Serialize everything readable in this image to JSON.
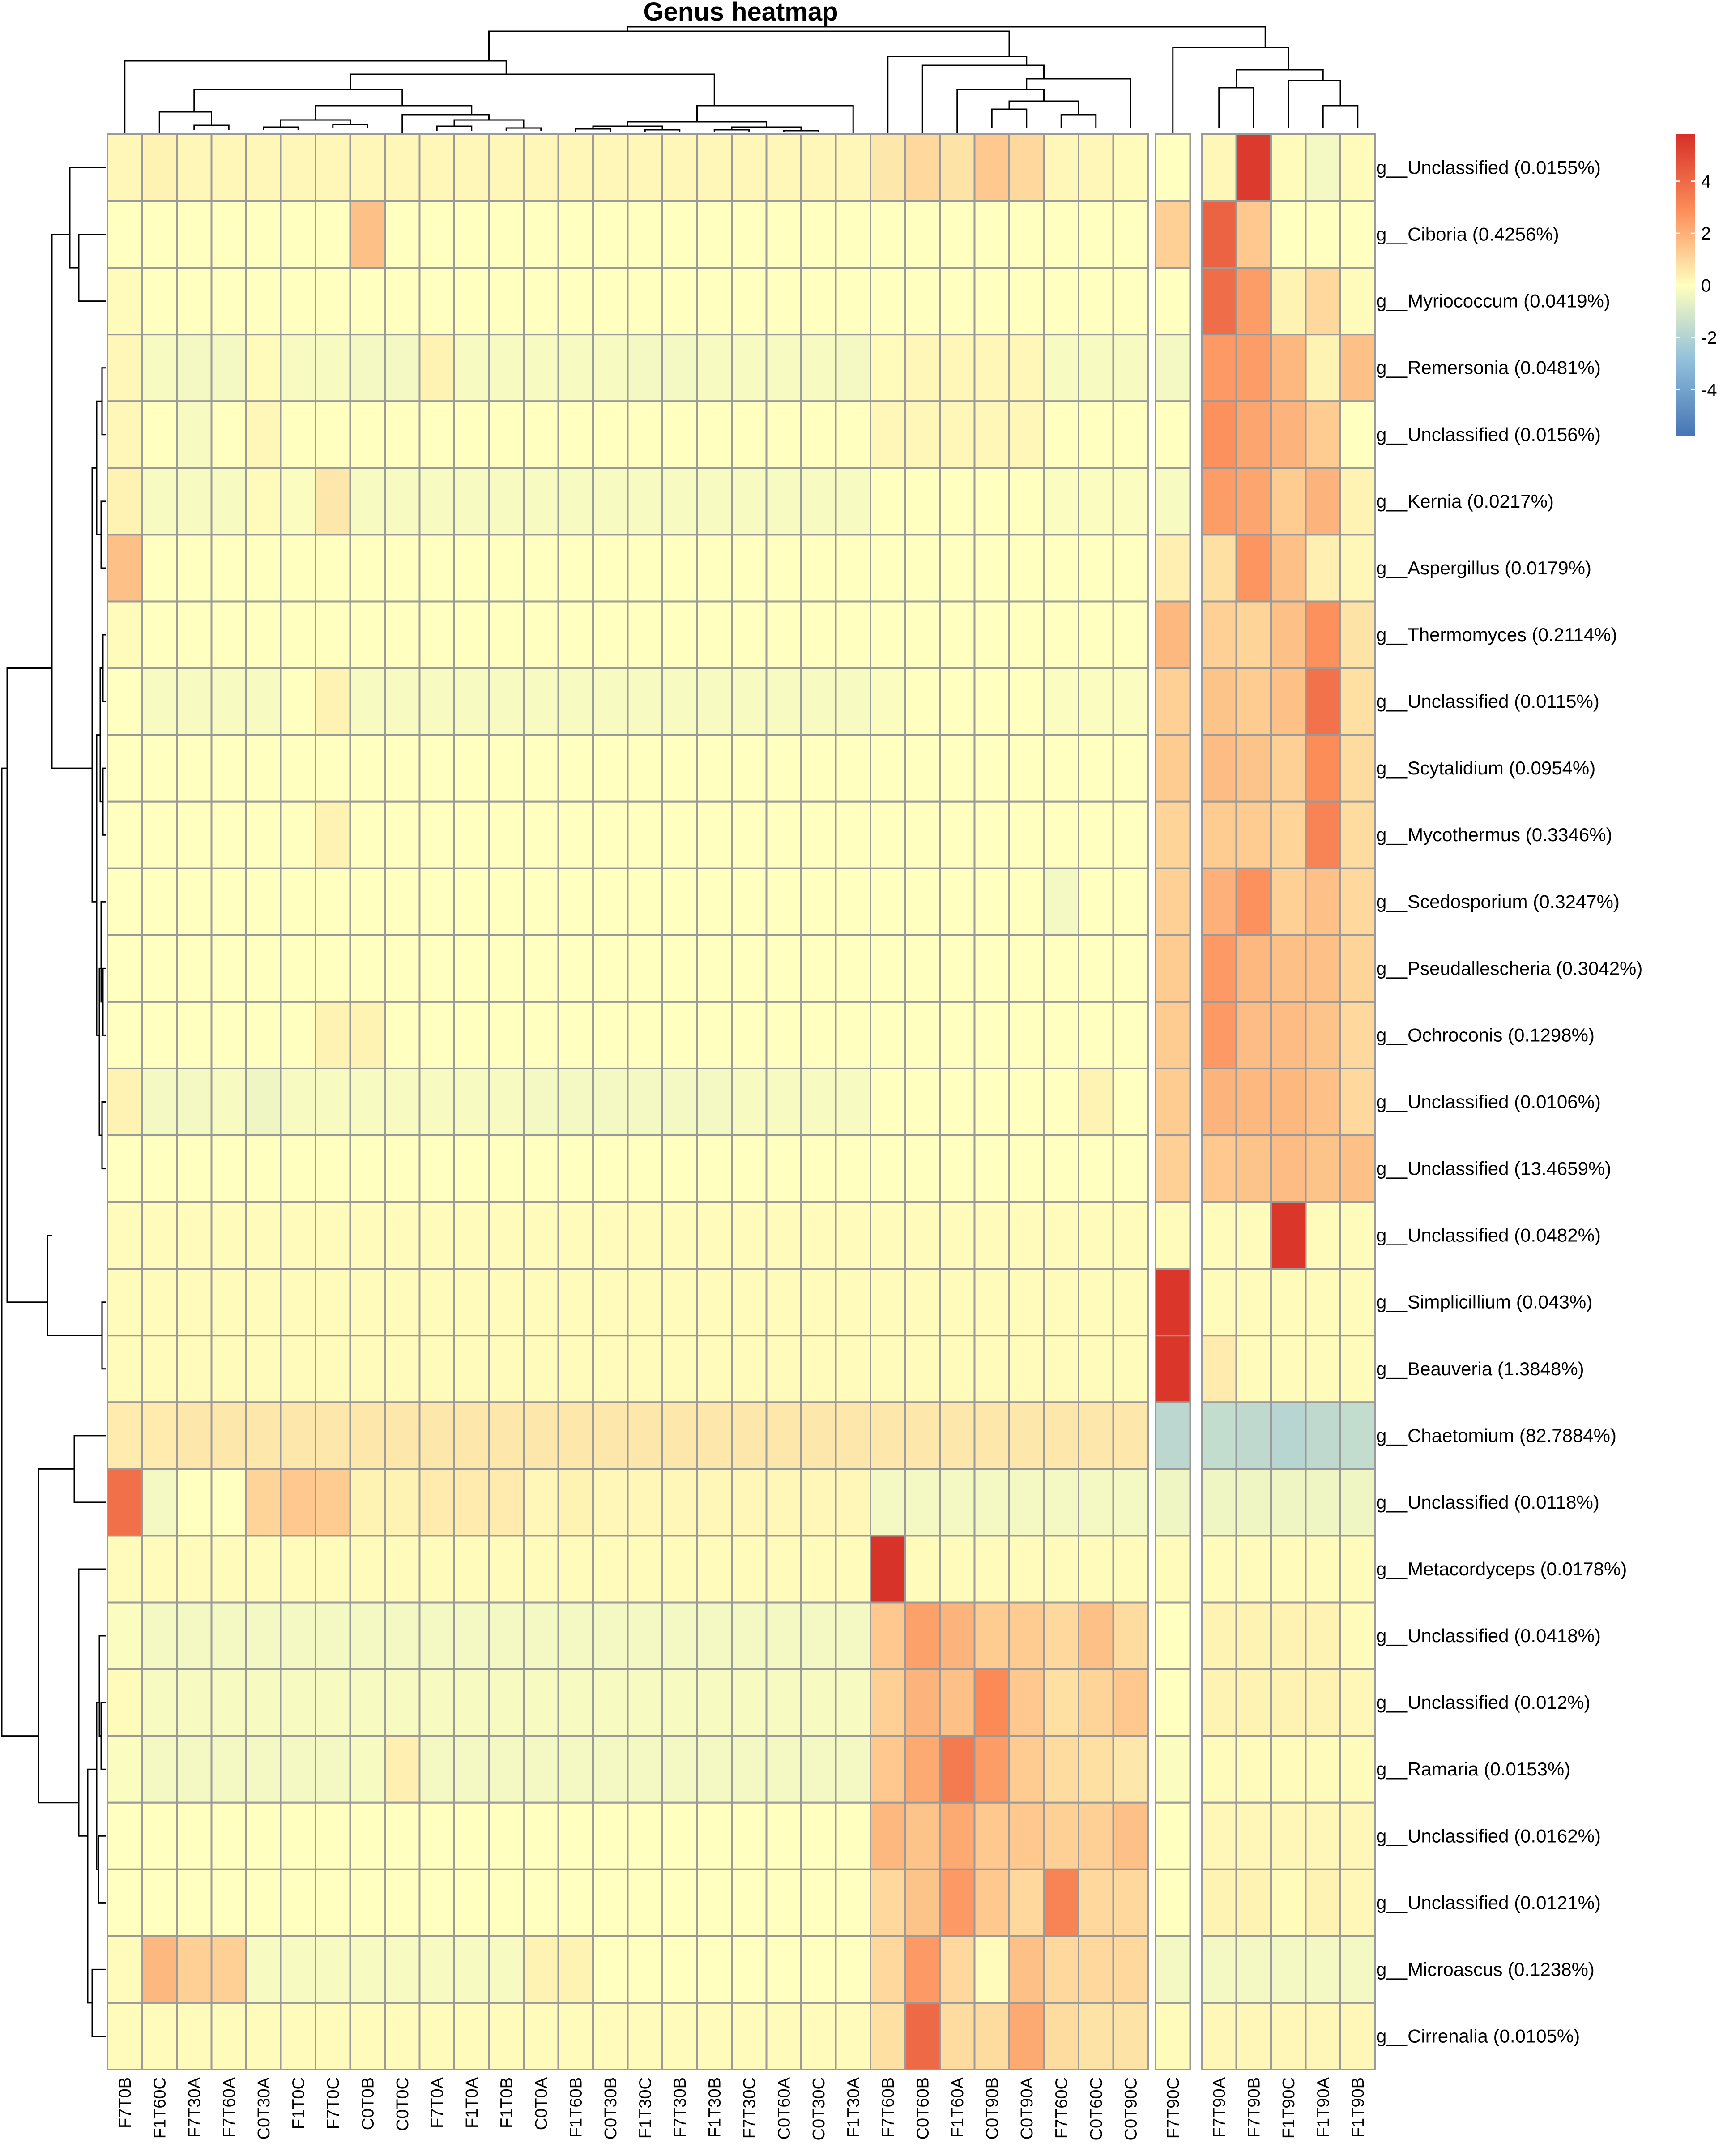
{
  "chart_data": {
    "type": "heatmap",
    "title": "Genus heatmap",
    "columns": [
      "F7T0B",
      "F1T60C",
      "F7T30A",
      "F7T60A",
      "C0T30A",
      "F1T0C",
      "F7T0C",
      "C0T0B",
      "C0T0C",
      "F7T0A",
      "F1T0A",
      "F1T0B",
      "C0T0A",
      "F1T60B",
      "C0T30B",
      "F1T30C",
      "F7T30B",
      "F1T30B",
      "F7T30C",
      "C0T60A",
      "C0T30C",
      "F1T30A",
      "F7T60B",
      "C0T60B",
      "F1T60A",
      "C0T90B",
      "C0T90A",
      "F7T60C",
      "C0T60C",
      "C0T90C",
      "F7T90C",
      "F7T90A",
      "F7T90B",
      "F1T90C",
      "F1T90A",
      "F1T90B"
    ],
    "rows": [
      "g__Unclassified (0.0155%)",
      "g__Ciboria (0.4256%)",
      "g__Myriococcum (0.0419%)",
      "g__Remersonia (0.0481%)",
      "g__Unclassified (0.0156%)",
      "g__Kernia (0.0217%)",
      "g__Aspergillus (0.0179%)",
      "g__Thermomyces (0.2114%)",
      "g__Unclassified (0.0115%)",
      "g__Scytalidium (0.0954%)",
      "g__Mycothermus (0.3346%)",
      "g__Scedosporium (0.3247%)",
      "g__Pseudallescheria (0.3042%)",
      "g__Ochroconis (0.1298%)",
      "g__Unclassified (0.0106%)",
      "g__Unclassified (13.4659%)",
      "g__Unclassified (0.0482%)",
      "g__Simplicillium (0.043%)",
      "g__Beauveria (1.3848%)",
      "g__Chaetomium (82.7884%)",
      "g__Unclassified (0.0118%)",
      "g__Metacordyceps (0.0178%)",
      "g__Unclassified (0.0418%)",
      "g__Unclassified (0.012%)",
      "g__Ramaria (0.0153%)",
      "g__Unclassified (0.0162%)",
      "g__Unclassified (0.0121%)",
      "g__Microascus (0.1238%)",
      "g__Cirrenalia (0.0105%)"
    ],
    "values": [
      [
        0.2,
        0.3,
        0.2,
        0.2,
        0.2,
        0.2,
        0.2,
        0.2,
        0.2,
        0.2,
        0.2,
        0.2,
        0.2,
        0.2,
        0.2,
        0.2,
        0.2,
        0.2,
        0.2,
        0.2,
        0.2,
        0.2,
        0.6,
        1.0,
        0.7,
        1.4,
        1.0,
        0.2,
        0.2,
        0.1,
        0.0,
        0.2,
        5.5,
        0.1,
        -0.3,
        0.1
      ],
      [
        0.0,
        0.0,
        0.0,
        0.0,
        0.0,
        0.0,
        0.0,
        1.6,
        0.0,
        0.0,
        0.0,
        0.0,
        0.0,
        0.0,
        0.0,
        0.0,
        0.0,
        0.0,
        0.0,
        0.0,
        0.0,
        0.0,
        0.0,
        0.0,
        0.0,
        0.0,
        0.0,
        0.0,
        0.0,
        0.0,
        1.2,
        4.2,
        1.4,
        0.0,
        0.0,
        0.0
      ],
      [
        0.1,
        0.0,
        0.0,
        0.0,
        0.0,
        0.0,
        0.0,
        0.0,
        0.0,
        0.0,
        0.0,
        0.0,
        0.0,
        0.0,
        0.0,
        0.0,
        0.0,
        0.0,
        0.0,
        0.0,
        0.0,
        0.0,
        0.0,
        0.0,
        0.0,
        0.0,
        0.0,
        0.0,
        0.0,
        0.0,
        0.0,
        3.9,
        2.5,
        0.3,
        1.0,
        0.1
      ],
      [
        0.2,
        -0.2,
        -0.3,
        -0.3,
        0.1,
        -0.2,
        -0.2,
        -0.3,
        -0.3,
        0.3,
        -0.2,
        -0.2,
        -0.2,
        -0.2,
        -0.2,
        -0.3,
        -0.3,
        -0.2,
        -0.2,
        -0.2,
        -0.2,
        -0.3,
        0.1,
        0.2,
        0.2,
        0.2,
        0.2,
        -0.2,
        -0.2,
        -0.2,
        -0.3,
        2.6,
        2.5,
        1.8,
        0.3,
        1.6
      ],
      [
        0.2,
        0.0,
        -0.2,
        0.0,
        0.2,
        0.0,
        0.0,
        0.0,
        0.0,
        0.0,
        0.0,
        0.0,
        0.0,
        0.0,
        0.0,
        0.0,
        0.0,
        0.0,
        0.0,
        0.0,
        0.0,
        0.0,
        0.2,
        0.2,
        0.2,
        0.2,
        0.2,
        0.0,
        0.0,
        0.0,
        0.0,
        2.8,
        2.3,
        1.9,
        1.3,
        0.0
      ],
      [
        0.3,
        -0.2,
        -0.2,
        -0.2,
        0.1,
        -0.1,
        0.6,
        -0.2,
        -0.2,
        -0.2,
        -0.2,
        -0.2,
        -0.2,
        -0.2,
        -0.2,
        -0.2,
        -0.2,
        -0.2,
        -0.2,
        -0.2,
        -0.2,
        -0.2,
        0.0,
        0.0,
        0.0,
        0.0,
        0.0,
        -0.1,
        -0.1,
        -0.1,
        -0.2,
        2.5,
        2.3,
        1.3,
        1.9,
        0.3
      ],
      [
        1.6,
        0.0,
        0.0,
        0.0,
        0.0,
        0.0,
        0.0,
        0.0,
        0.0,
        0.0,
        0.0,
        0.0,
        0.0,
        0.0,
        0.0,
        0.0,
        0.0,
        0.0,
        0.0,
        0.0,
        0.0,
        0.0,
        0.0,
        0.0,
        0.0,
        0.0,
        0.0,
        0.0,
        0.0,
        0.0,
        0.4,
        0.8,
        2.7,
        1.6,
        0.4,
        0.2
      ],
      [
        0.1,
        0.0,
        0.0,
        0.0,
        0.0,
        0.0,
        0.0,
        0.0,
        0.0,
        0.0,
        0.0,
        0.0,
        0.0,
        0.0,
        0.0,
        0.0,
        0.0,
        0.0,
        0.0,
        0.0,
        0.0,
        0.0,
        0.0,
        0.0,
        0.0,
        0.0,
        0.0,
        0.0,
        0.0,
        0.0,
        1.8,
        1.2,
        1.1,
        1.6,
        2.8,
        0.7
      ],
      [
        0.0,
        -0.2,
        -0.2,
        -0.2,
        -0.2,
        0.0,
        0.3,
        -0.2,
        -0.2,
        -0.2,
        -0.2,
        -0.2,
        -0.2,
        -0.2,
        -0.2,
        -0.2,
        -0.2,
        -0.2,
        -0.2,
        -0.2,
        -0.2,
        -0.2,
        -0.1,
        0.0,
        0.0,
        0.0,
        0.0,
        -0.1,
        -0.1,
        -0.1,
        1.2,
        1.5,
        1.3,
        1.6,
        3.7,
        0.8
      ],
      [
        0.0,
        0.0,
        0.0,
        0.0,
        0.0,
        0.0,
        0.0,
        0.0,
        0.0,
        0.0,
        0.0,
        0.0,
        0.0,
        0.0,
        0.0,
        0.0,
        0.0,
        0.0,
        0.0,
        0.0,
        0.0,
        0.0,
        0.0,
        0.0,
        0.0,
        0.0,
        0.0,
        0.0,
        0.0,
        0.0,
        1.3,
        1.7,
        1.5,
        1.2,
        2.9,
        0.9
      ],
      [
        0.0,
        0.0,
        0.0,
        0.0,
        0.0,
        0.0,
        0.3,
        0.0,
        0.0,
        0.0,
        0.0,
        0.0,
        0.0,
        0.0,
        0.0,
        0.0,
        0.0,
        0.0,
        0.0,
        0.0,
        0.0,
        0.0,
        0.0,
        0.0,
        0.0,
        0.0,
        0.0,
        0.0,
        0.0,
        0.0,
        1.1,
        1.3,
        1.3,
        1.1,
        3.2,
        0.9
      ],
      [
        0.0,
        0.0,
        0.0,
        0.0,
        0.0,
        0.0,
        0.0,
        0.0,
        0.0,
        0.0,
        0.0,
        0.0,
        0.0,
        0.0,
        0.0,
        0.0,
        0.0,
        0.0,
        0.0,
        0.0,
        0.0,
        0.0,
        0.0,
        0.0,
        0.0,
        0.0,
        0.0,
        -0.3,
        0.0,
        0.0,
        1.2,
        2.0,
        2.8,
        1.2,
        1.6,
        1.0
      ],
      [
        0.0,
        0.0,
        0.0,
        0.0,
        0.0,
        0.0,
        0.0,
        0.0,
        0.0,
        0.0,
        0.0,
        0.0,
        0.0,
        0.0,
        0.0,
        0.0,
        0.0,
        0.0,
        0.0,
        0.0,
        0.0,
        0.0,
        0.0,
        0.0,
        0.0,
        0.0,
        0.0,
        0.0,
        0.0,
        0.0,
        1.3,
        2.6,
        1.8,
        1.6,
        1.6,
        1.1
      ],
      [
        0.0,
        0.0,
        0.0,
        0.0,
        0.0,
        0.0,
        0.3,
        0.3,
        0.0,
        0.0,
        0.0,
        0.0,
        0.0,
        0.0,
        0.0,
        0.0,
        0.0,
        0.0,
        0.0,
        0.0,
        0.0,
        0.0,
        0.0,
        0.0,
        0.0,
        0.0,
        0.0,
        0.0,
        0.0,
        0.0,
        1.3,
        2.6,
        1.7,
        1.7,
        1.5,
        1.0
      ],
      [
        0.3,
        -0.3,
        -0.3,
        -0.2,
        -0.4,
        -0.2,
        -0.2,
        -0.2,
        -0.2,
        -0.2,
        -0.2,
        -0.2,
        -0.3,
        -0.3,
        -0.3,
        -0.3,
        -0.3,
        -0.3,
        -0.2,
        -0.2,
        -0.2,
        -0.2,
        0.0,
        0.0,
        0.0,
        0.0,
        0.0,
        0.0,
        0.3,
        0.0,
        1.3,
        1.9,
        1.8,
        1.8,
        1.6,
        1.0
      ],
      [
        0.0,
        0.0,
        0.0,
        0.0,
        0.0,
        0.0,
        0.0,
        0.0,
        0.0,
        0.0,
        0.0,
        0.0,
        0.0,
        0.0,
        0.0,
        0.0,
        0.0,
        0.0,
        0.0,
        0.0,
        0.0,
        0.0,
        0.0,
        0.0,
        0.0,
        0.0,
        0.0,
        0.0,
        0.0,
        0.0,
        1.2,
        1.4,
        1.5,
        1.7,
        1.5,
        1.6
      ],
      [
        0.1,
        0.1,
        0.1,
        0.1,
        0.1,
        0.1,
        0.1,
        0.1,
        0.1,
        0.1,
        0.1,
        0.1,
        0.1,
        0.1,
        0.1,
        0.1,
        0.1,
        0.1,
        0.1,
        0.1,
        0.1,
        0.1,
        0.1,
        0.1,
        0.1,
        0.1,
        0.1,
        0.1,
        0.1,
        0.1,
        0.1,
        0.1,
        0.1,
        5.6,
        0.1,
        0.1
      ],
      [
        0.1,
        0.1,
        0.1,
        0.1,
        0.1,
        0.1,
        0.1,
        0.1,
        0.1,
        0.1,
        0.1,
        0.1,
        0.1,
        0.1,
        0.1,
        0.1,
        0.1,
        0.1,
        0.1,
        0.1,
        0.1,
        0.1,
        0.1,
        0.1,
        0.1,
        0.1,
        0.1,
        0.1,
        0.1,
        0.1,
        5.6,
        0.1,
        0.1,
        0.1,
        0.1,
        0.1
      ],
      [
        0.1,
        0.1,
        0.1,
        0.1,
        0.1,
        0.1,
        0.1,
        0.1,
        0.1,
        0.1,
        0.1,
        0.1,
        0.1,
        0.1,
        0.1,
        0.1,
        0.1,
        0.1,
        0.1,
        0.1,
        0.1,
        0.1,
        0.1,
        0.1,
        0.1,
        0.1,
        0.1,
        0.1,
        0.1,
        0.1,
        5.6,
        0.5,
        0.1,
        0.1,
        0.1,
        0.1
      ],
      [
        0.5,
        0.5,
        0.6,
        0.6,
        0.6,
        0.6,
        0.6,
        0.6,
        0.6,
        0.6,
        0.6,
        0.6,
        0.6,
        0.6,
        0.6,
        0.6,
        0.6,
        0.6,
        0.6,
        0.6,
        0.6,
        0.6,
        0.6,
        0.6,
        0.6,
        0.6,
        0.6,
        0.6,
        0.6,
        0.6,
        -1.8,
        -1.6,
        -1.7,
        -1.9,
        -1.7,
        -1.6
      ],
      [
        3.8,
        -0.3,
        0.0,
        0.0,
        1.1,
        1.4,
        1.3,
        0.3,
        0.3,
        0.5,
        0.5,
        0.5,
        0.2,
        0.3,
        0.2,
        0.2,
        0.2,
        0.2,
        0.2,
        0.2,
        0.2,
        0.2,
        -0.3,
        -0.3,
        -0.3,
        -0.3,
        -0.3,
        -0.3,
        -0.3,
        -0.3,
        -0.4,
        -0.4,
        -0.4,
        -0.4,
        -0.4,
        -0.4
      ],
      [
        0.1,
        0.1,
        0.1,
        0.1,
        0.1,
        0.1,
        0.1,
        0.1,
        0.1,
        0.1,
        0.1,
        0.1,
        0.1,
        0.1,
        0.1,
        0.1,
        0.1,
        0.1,
        0.1,
        0.1,
        0.1,
        0.1,
        5.7,
        0.1,
        0.1,
        0.1,
        0.1,
        0.1,
        0.1,
        0.1,
        0.1,
        0.1,
        0.1,
        0.1,
        0.1,
        0.1
      ],
      [
        -0.1,
        -0.3,
        -0.3,
        -0.3,
        -0.3,
        -0.3,
        -0.3,
        -0.3,
        -0.3,
        -0.3,
        -0.3,
        -0.3,
        -0.3,
        -0.3,
        -0.3,
        -0.3,
        -0.3,
        -0.3,
        -0.3,
        -0.3,
        -0.3,
        -0.3,
        1.4,
        2.4,
        1.9,
        1.3,
        1.3,
        1.0,
        1.6,
        0.9,
        0.0,
        0.3,
        0.3,
        0.3,
        0.3,
        0.1
      ],
      [
        0.1,
        -0.2,
        -0.2,
        -0.2,
        -0.2,
        -0.2,
        -0.2,
        -0.2,
        -0.2,
        -0.2,
        -0.2,
        -0.2,
        -0.2,
        -0.2,
        -0.2,
        -0.2,
        -0.2,
        -0.2,
        -0.2,
        -0.2,
        -0.2,
        -0.2,
        1.2,
        1.9,
        1.6,
        3.0,
        1.4,
        0.8,
        1.1,
        1.4,
        0.0,
        0.3,
        0.3,
        0.3,
        0.3,
        0.2
      ],
      [
        -0.1,
        -0.3,
        -0.3,
        -0.3,
        -0.3,
        -0.3,
        -0.3,
        -0.2,
        0.4,
        -0.3,
        -0.3,
        -0.3,
        -0.3,
        -0.3,
        -0.3,
        -0.3,
        -0.3,
        -0.3,
        -0.3,
        -0.3,
        -0.3,
        -0.3,
        1.4,
        2.2,
        3.5,
        2.5,
        1.3,
        0.9,
        0.8,
        0.6,
        -0.1,
        0.1,
        0.1,
        0.1,
        0.1,
        0.1
      ],
      [
        0.0,
        0.0,
        0.0,
        0.0,
        0.0,
        0.0,
        0.0,
        0.0,
        0.0,
        0.0,
        0.0,
        0.0,
        0.0,
        0.0,
        0.0,
        0.0,
        0.0,
        0.0,
        0.0,
        0.0,
        0.0,
        0.0,
        1.8,
        1.5,
        2.2,
        1.4,
        1.4,
        1.2,
        1.2,
        1.6,
        0.0,
        0.2,
        0.2,
        0.2,
        0.2,
        0.2
      ],
      [
        0.0,
        0.0,
        0.0,
        0.0,
        0.0,
        0.0,
        0.0,
        0.0,
        0.0,
        0.0,
        0.0,
        0.0,
        0.0,
        0.0,
        0.0,
        0.0,
        0.0,
        0.0,
        0.0,
        0.0,
        0.0,
        0.0,
        1.0,
        1.5,
        2.6,
        1.4,
        1.0,
        3.2,
        1.0,
        1.0,
        0.0,
        0.3,
        0.3,
        0.1,
        0.3,
        0.2
      ],
      [
        0.1,
        1.8,
        1.2,
        1.2,
        -0.2,
        -0.2,
        -0.2,
        -0.2,
        -0.2,
        -0.2,
        -0.2,
        -0.2,
        0.3,
        0.3,
        0.0,
        0.0,
        0.0,
        0.0,
        0.0,
        0.0,
        0.0,
        0.0,
        1.0,
        2.6,
        1.0,
        0.1,
        1.6,
        1.0,
        1.0,
        1.0,
        -0.3,
        -0.3,
        -0.3,
        -0.3,
        -0.3,
        -0.3
      ],
      [
        0.1,
        0.1,
        0.1,
        0.1,
        0.1,
        0.1,
        0.1,
        0.1,
        0.1,
        0.1,
        0.1,
        0.1,
        0.1,
        0.1,
        0.1,
        0.1,
        0.1,
        0.1,
        0.1,
        0.1,
        0.1,
        0.1,
        0.8,
        4.0,
        0.9,
        0.9,
        2.2,
        0.9,
        0.7,
        0.7,
        0.1,
        0.2,
        0.2,
        0.2,
        0.2,
        0.2
      ]
    ],
    "color_scale": {
      "range": [
        -5.8,
        5.8
      ],
      "ticks": [
        4,
        2,
        0,
        -2,
        -4
      ],
      "tick_labels": [
        "4",
        "2",
        "0",
        "-2",
        "-4"
      ],
      "low_color": "#4575b4",
      "mid_color": "#ffffbf",
      "high_color": "#d73027"
    },
    "row_clustering": true,
    "column_clustering": true,
    "legend_position": "top-right"
  }
}
